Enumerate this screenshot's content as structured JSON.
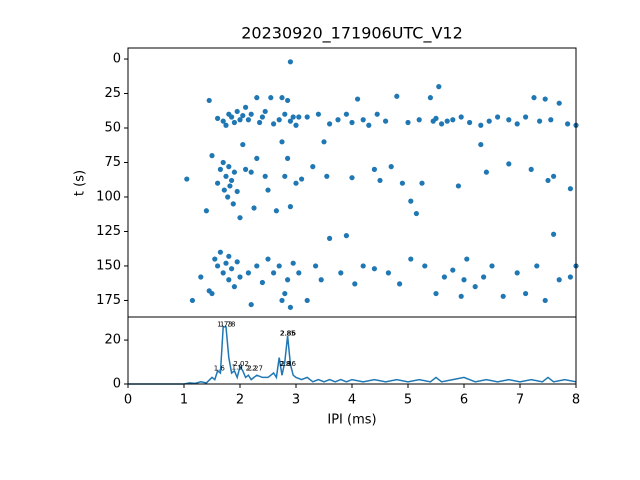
{
  "chart_data": [
    {
      "type": "scatter",
      "title": "20230920_171906UTC_V12",
      "y_label": "t (s)",
      "color": "#1f77b4",
      "xlim": [
        0,
        8
      ],
      "ylim": [
        -8,
        187
      ],
      "y_inverted": true,
      "yticks": [
        0,
        25,
        50,
        75,
        100,
        125,
        150,
        175
      ],
      "x": [
        1.45,
        1.6,
        1.7,
        1.75,
        1.8,
        1.85,
        1.9,
        1.95,
        2.0,
        2.05,
        2.1,
        2.15,
        2.2,
        2.3,
        2.35,
        2.4,
        2.45,
        2.55,
        2.6,
        2.7,
        2.75,
        2.8,
        2.85,
        2.9,
        2.95,
        3.0,
        3.05,
        3.2,
        3.4,
        3.6,
        3.75,
        3.9,
        4.0,
        4.1,
        4.2,
        4.3,
        4.45,
        4.6,
        4.8,
        5.0,
        5.2,
        5.4,
        5.45,
        5.5,
        5.55,
        5.6,
        5.7,
        5.8,
        5.95,
        6.1,
        6.3,
        6.45,
        6.6,
        6.8,
        6.95,
        7.1,
        7.25,
        7.35,
        7.45,
        7.55,
        7.7,
        7.85,
        8.0,
        2.9,
        1.05,
        1.4,
        1.5,
        1.6,
        1.65,
        1.7,
        1.72,
        1.75,
        1.78,
        1.8,
        1.82,
        1.85,
        1.88,
        1.9,
        1.95,
        2.0,
        2.05,
        2.1,
        2.2,
        2.25,
        2.3,
        2.45,
        2.5,
        2.65,
        2.75,
        2.8,
        2.85,
        2.9,
        3.0,
        3.1,
        3.3,
        3.5,
        3.55,
        4.0,
        4.4,
        4.5,
        4.7,
        4.9,
        5.05,
        5.15,
        5.25,
        5.9,
        6.3,
        6.4,
        6.8,
        7.2,
        7.5,
        7.6,
        7.9,
        1.15,
        1.3,
        1.45,
        1.55,
        1.6,
        1.65,
        1.7,
        1.75,
        1.8,
        1.85,
        1.9,
        1.95,
        2.0,
        2.15,
        2.3,
        2.4,
        2.5,
        2.6,
        2.7,
        2.75,
        2.8,
        2.85,
        2.9,
        2.95,
        3.05,
        3.2,
        3.35,
        3.45,
        3.6,
        3.8,
        3.9,
        4.05,
        4.2,
        4.4,
        4.65,
        4.85,
        5.05,
        5.3,
        5.5,
        5.65,
        5.8,
        5.95,
        6.05,
        6.2,
        6.35,
        6.5,
        6.7,
        6.95,
        7.1,
        7.3,
        7.45,
        7.6,
        7.7,
        7.9,
        8.0,
        1.5,
        1.8,
        2.2,
        6.0
      ],
      "values": [
        30,
        43,
        45,
        48,
        40,
        42,
        46,
        38,
        44,
        41,
        35,
        44,
        40,
        28,
        46,
        42,
        38,
        28,
        47,
        44,
        28,
        40,
        30,
        45,
        42,
        48,
        42,
        42,
        40,
        47,
        44,
        40,
        46,
        29,
        44,
        48,
        40,
        45,
        27,
        46,
        44,
        28,
        45,
        43,
        20,
        47,
        45,
        44,
        42,
        46,
        48,
        45,
        42,
        44,
        47,
        42,
        28,
        45,
        29,
        44,
        32,
        47,
        48,
        2,
        87,
        110,
        70,
        90,
        80,
        75,
        95,
        85,
        100,
        78,
        92,
        88,
        105,
        82,
        96,
        115,
        62,
        80,
        82,
        108,
        72,
        85,
        95,
        110,
        60,
        85,
        72,
        107,
        90,
        87,
        78,
        60,
        85,
        86,
        80,
        88,
        78,
        90,
        103,
        112,
        90,
        92,
        62,
        82,
        76,
        80,
        88,
        85,
        94,
        175,
        158,
        168,
        145,
        150,
        140,
        155,
        148,
        160,
        152,
        165,
        147,
        158,
        155,
        150,
        162,
        145,
        155,
        150,
        175,
        170,
        160,
        180,
        148,
        155,
        175,
        150,
        160,
        130,
        155,
        128,
        163,
        150,
        152,
        155,
        163,
        145,
        150,
        170,
        158,
        153,
        172,
        145,
        165,
        158,
        150,
        172,
        155,
        170,
        150,
        175,
        127,
        160,
        158,
        150,
        170,
        143,
        178,
        160
      ]
    },
    {
      "type": "line",
      "x_label": "IPI (ms)",
      "color": "#1f77b4",
      "xlim": [
        0,
        8
      ],
      "ylim": [
        0,
        30.5
      ],
      "xticks": [
        0,
        1,
        2,
        3,
        4,
        5,
        6,
        7,
        8
      ],
      "yticks": [
        0,
        20
      ],
      "x": [
        0,
        1.0,
        1.1,
        1.2,
        1.3,
        1.4,
        1.5,
        1.55,
        1.6,
        1.65,
        1.7,
        1.75,
        1.8,
        1.85,
        1.9,
        1.95,
        2.0,
        2.05,
        2.1,
        2.15,
        2.2,
        2.3,
        2.4,
        2.5,
        2.6,
        2.65,
        2.7,
        2.75,
        2.8,
        2.85,
        2.9,
        2.95,
        3.0,
        3.1,
        3.2,
        3.3,
        3.4,
        3.5,
        3.6,
        3.7,
        3.8,
        3.9,
        4.0,
        4.2,
        4.4,
        4.6,
        4.8,
        5.0,
        5.2,
        5.4,
        5.5,
        5.6,
        5.8,
        6.0,
        6.2,
        6.4,
        6.6,
        6.8,
        7.0,
        7.2,
        7.4,
        7.5,
        7.6,
        7.8,
        8.0
      ],
      "values": [
        0,
        0,
        0.5,
        0.3,
        1,
        0.5,
        3,
        2,
        6,
        5,
        26,
        26,
        12,
        5,
        6,
        3,
        8,
        6,
        3,
        4,
        2,
        4,
        3,
        3,
        5,
        3,
        12,
        4,
        10,
        22,
        9,
        4,
        3,
        2,
        3,
        1,
        2,
        1,
        2,
        1,
        2,
        1,
        2,
        1,
        2,
        1,
        2,
        1,
        2,
        1,
        3,
        1,
        2,
        3,
        1,
        2,
        1,
        2,
        1,
        2,
        1,
        3,
        1,
        2,
        1
      ],
      "annotations": [
        {
          "x": 1.73,
          "y": 27,
          "text": "1.73"
        },
        {
          "x": 1.78,
          "y": 27,
          "text": "1.78"
        },
        {
          "x": 2.85,
          "y": 23,
          "text": "2.85"
        },
        {
          "x": 2.86,
          "y": 23,
          "text": "2.86"
        },
        {
          "x": 1.63,
          "y": 7,
          "text": "1.6"
        },
        {
          "x": 1.95,
          "y": 7.5,
          "text": "1.9"
        },
        {
          "x": 2.02,
          "y": 9,
          "text": "2.02"
        },
        {
          "x": 2.27,
          "y": 7,
          "text": "2.27"
        },
        {
          "x": 2.2,
          "y": 7,
          "text": "2.2"
        },
        {
          "x": 2.8,
          "y": 9,
          "text": "2.8"
        },
        {
          "x": 2.86,
          "y": 9,
          "text": "2.86"
        }
      ]
    }
  ]
}
